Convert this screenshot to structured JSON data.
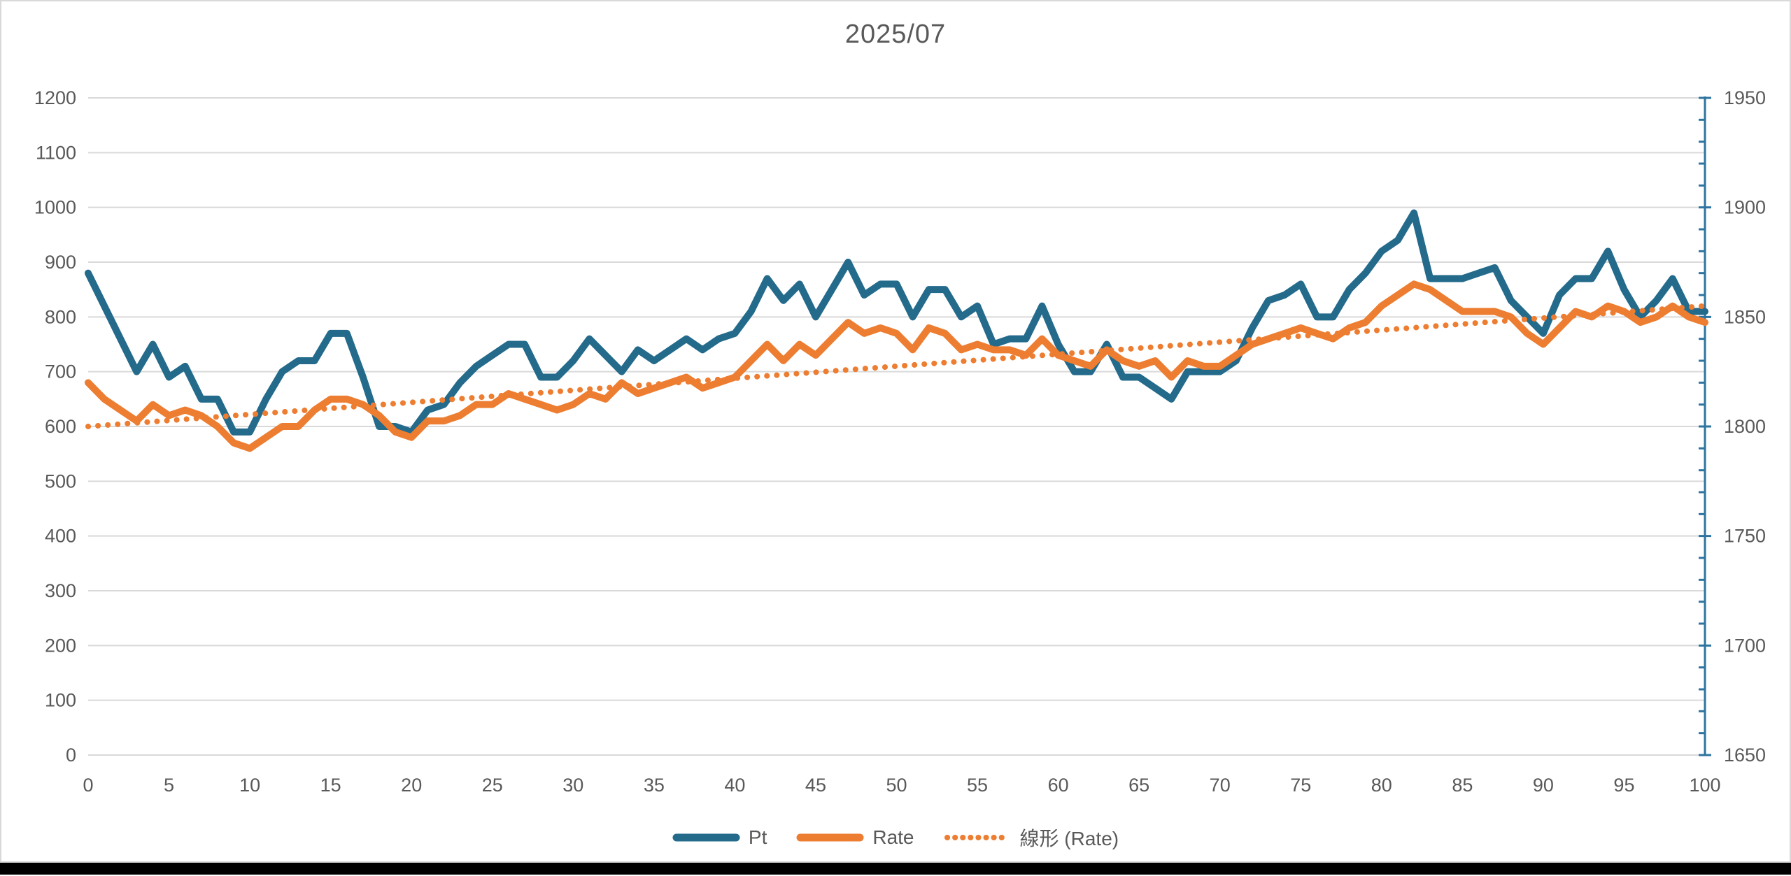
{
  "title": "2025/07",
  "colors": {
    "pt_line": "#236A8B",
    "rate_line": "#ED7D31",
    "trend_line": "#ED7D31",
    "gridline": "#D9D9D9",
    "axis_text": "#595959",
    "right_axis_line": "#2E74A0",
    "frame_border": "#D9D9D9",
    "bottom_bar": "#000000"
  },
  "chart_data": {
    "type": "line",
    "title": "2025/07",
    "x_range": [
      0,
      100
    ],
    "x_tick_step": 5,
    "grid": "horizontal-only",
    "legend_position": "bottom",
    "left_axis": {
      "min": 0,
      "max": 1200,
      "step": 100
    },
    "right_axis": {
      "min": 1650,
      "max": 1950,
      "step": 50,
      "minor_step": 10
    },
    "series": [
      {
        "name": "Pt",
        "axis": "left",
        "style": "solid",
        "color": "#236A8B",
        "values": [
          880,
          820,
          760,
          700,
          750,
          690,
          710,
          650,
          650,
          590,
          590,
          650,
          700,
          720,
          720,
          770,
          770,
          690,
          600,
          600,
          590,
          630,
          640,
          680,
          710,
          730,
          750,
          750,
          690,
          690,
          720,
          760,
          730,
          700,
          740,
          720,
          740,
          760,
          740,
          760,
          770,
          810,
          870,
          830,
          860,
          800,
          850,
          900,
          840,
          860,
          860,
          800,
          850,
          850,
          800,
          820,
          750,
          760,
          760,
          820,
          750,
          700,
          700,
          750,
          690,
          690,
          670,
          650,
          700,
          700,
          700,
          720,
          780,
          830,
          840,
          860,
          800,
          800,
          850,
          880,
          920,
          940,
          990,
          870,
          870,
          870,
          880,
          890,
          830,
          800,
          770,
          840,
          870,
          870,
          920,
          850,
          800,
          830,
          870,
          810,
          810
        ]
      },
      {
        "name": "Rate",
        "axis": "right",
        "style": "solid",
        "color": "#ED7D31",
        "values": [
          1820,
          1812.5,
          1807.5,
          1802.5,
          1810,
          1805,
          1807.5,
          1805,
          1800,
          1792.5,
          1790,
          1795,
          1800,
          1800,
          1807.5,
          1812.5,
          1812.5,
          1810,
          1805,
          1797.5,
          1795,
          1802.5,
          1802.5,
          1805,
          1810,
          1810,
          1815,
          1812.5,
          1810,
          1807.5,
          1810,
          1815,
          1812.5,
          1820,
          1815,
          1817.5,
          1820,
          1822.5,
          1817.5,
          1820,
          1822.5,
          1830,
          1837.5,
          1830,
          1837.5,
          1832.5,
          1840,
          1847.5,
          1842.5,
          1845,
          1842.5,
          1835,
          1845,
          1842.5,
          1835,
          1837.5,
          1835,
          1835,
          1832.5,
          1840,
          1832.5,
          1830,
          1827.5,
          1835,
          1830,
          1827.5,
          1830,
          1822.5,
          1830,
          1827.5,
          1827.5,
          1832.5,
          1837.5,
          1840,
          1842.5,
          1845,
          1842.5,
          1840,
          1845,
          1847.5,
          1855,
          1860,
          1865,
          1862.5,
          1857.5,
          1852.5,
          1852.5,
          1852.5,
          1850,
          1842.5,
          1837.5,
          1845,
          1852.5,
          1850,
          1855,
          1852.5,
          1847.5,
          1850,
          1855,
          1850,
          1847.5
        ]
      },
      {
        "name": "線形 (Rate)",
        "axis": "right",
        "style": "dotted",
        "color": "#ED7D31",
        "trend": {
          "x0": 0,
          "y0": 1800,
          "x1": 100,
          "y1": 1855
        }
      }
    ]
  },
  "legend": {
    "items": [
      {
        "label": "Pt",
        "color": "#236A8B",
        "style": "solid"
      },
      {
        "label": "Rate",
        "color": "#ED7D31",
        "style": "solid"
      },
      {
        "label": "線形 (Rate)",
        "color": "#ED7D31",
        "style": "dotted"
      }
    ]
  }
}
